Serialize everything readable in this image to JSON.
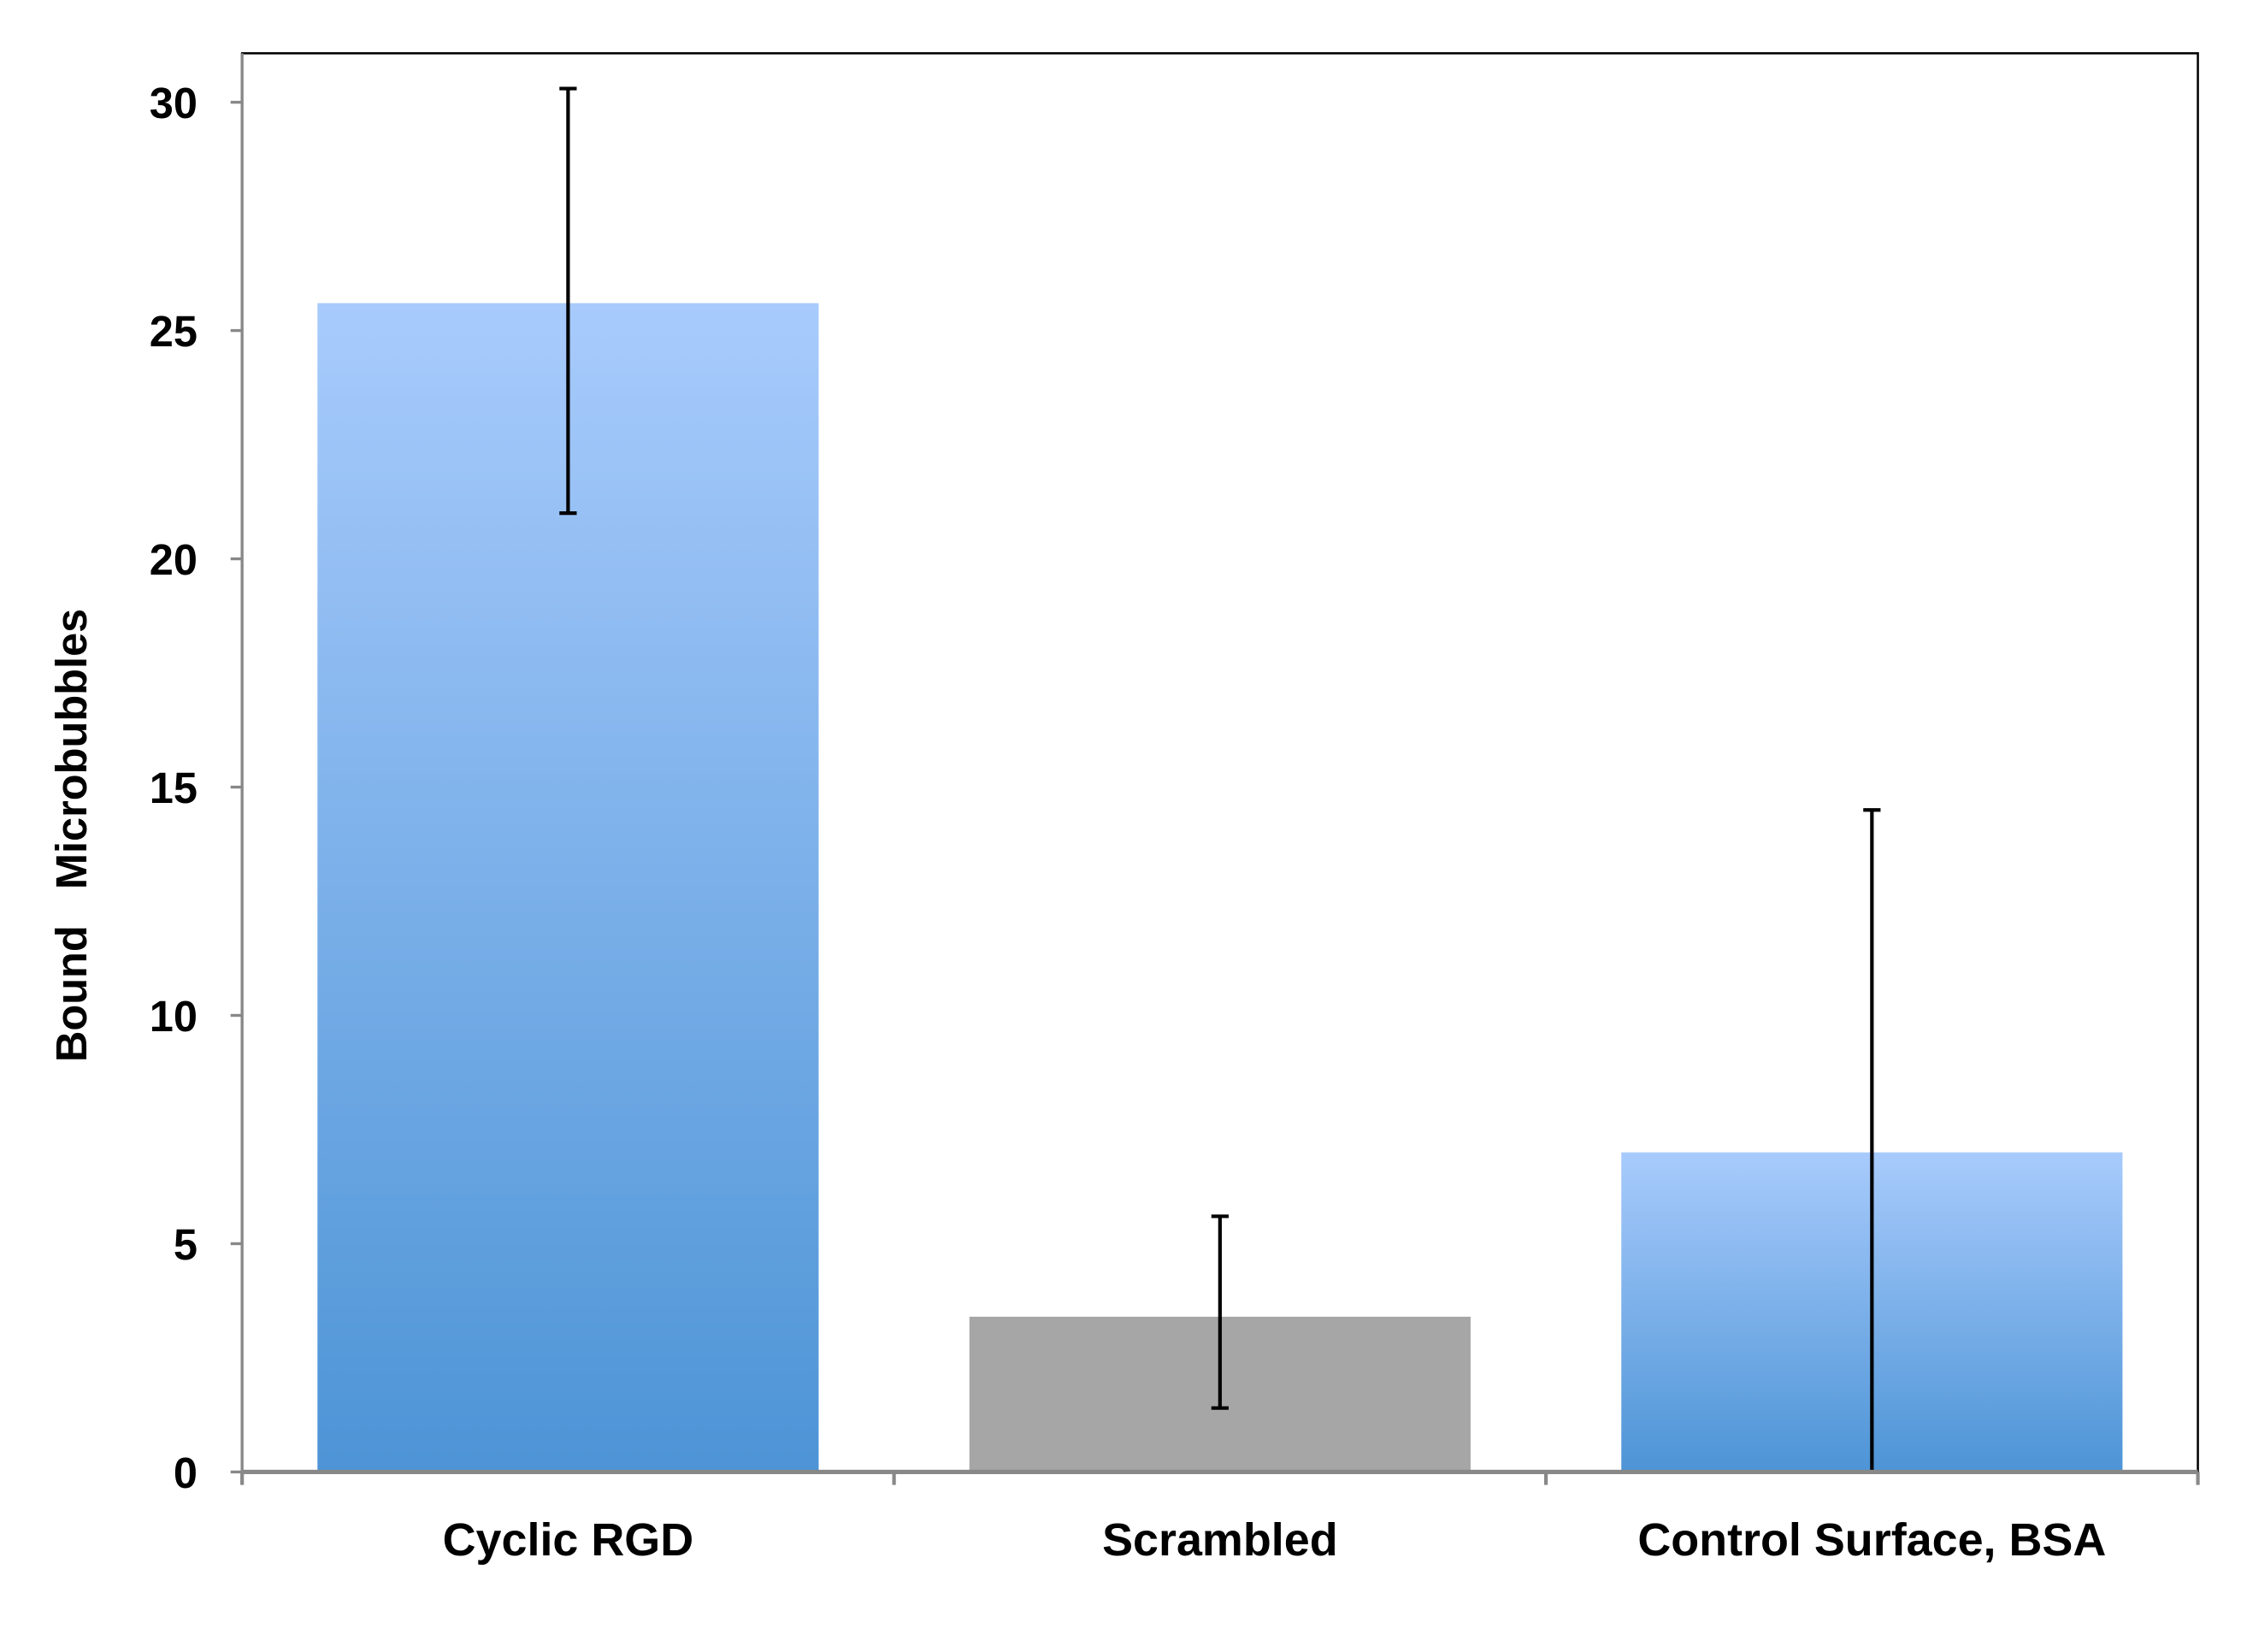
{
  "chart_data": {
    "type": "bar",
    "title": "",
    "xlabel": "",
    "ylabel": "Bound   Microbubbles",
    "ylim": [
      0,
      30
    ],
    "yticks": [
      0,
      5,
      10,
      15,
      20,
      25,
      30
    ],
    "grid": false,
    "categories": [
      "Cyclic RGD",
      "Scrambled",
      "Control Surface, BSA"
    ],
    "values": [
      25.6,
      3.4,
      7.0
    ],
    "error_low": [
      21.0,
      1.4,
      0.0
    ],
    "error_high": [
      30.3,
      5.6,
      14.5
    ],
    "colors": [
      "blue-gradient",
      "#a6a6a6",
      "blue-gradient"
    ],
    "gradient": {
      "top": "#a8cbfc",
      "bottom": "#4d94d6"
    }
  }
}
